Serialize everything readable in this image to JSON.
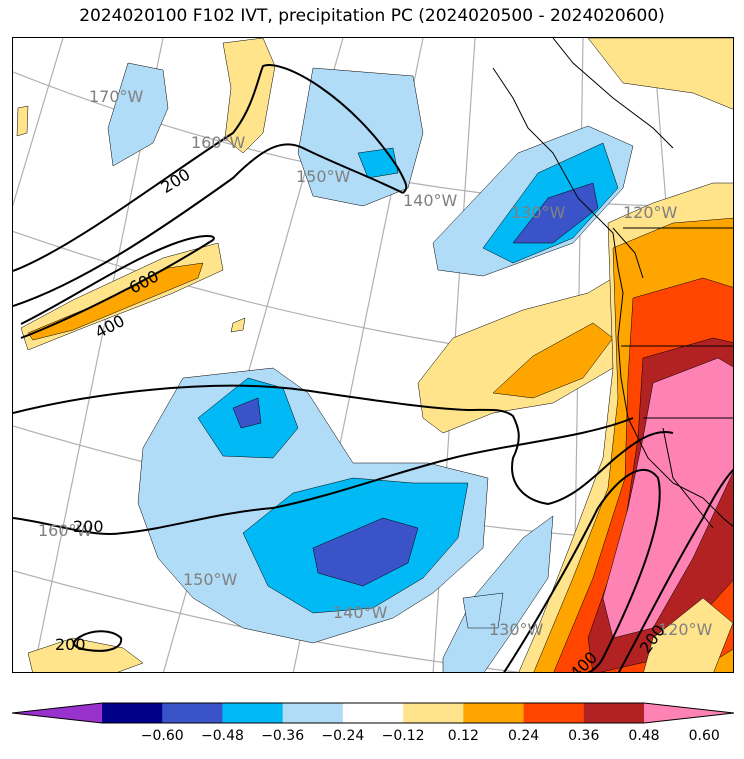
{
  "title": "2024020100 F102 IVT, precipitation PC (2024020500 - 2024020600)",
  "colors": {
    "purple": "#9932cc",
    "navy": "#00008b",
    "royal": "#3a53c8",
    "cyan": "#00b9f5",
    "lightblue": "#b0dcf8",
    "white": "#ffffff",
    "lightyellow": "#ffe48c",
    "orange": "#ffa500",
    "redorange": "#ff4500",
    "darkred": "#b22222",
    "pink": "#ff82b4",
    "gridline": "#b0b0b0",
    "contour": "#000000"
  },
  "longitude_labels": [
    "170°W",
    "160°W",
    "150°W",
    "140°W",
    "130°W",
    "120°W",
    "160°W",
    "150°W",
    "140°W",
    "130°W",
    "120°W"
  ],
  "contour_labels": [
    "200",
    "600",
    "400",
    "200",
    "200",
    "400",
    "200"
  ],
  "colorbar": {
    "ticks": [
      "−0.60",
      "−0.48",
      "−0.36",
      "−0.24",
      "−0.12",
      "0.12",
      "0.24",
      "0.36",
      "0.48",
      "0.60"
    ],
    "segments": [
      "purple",
      "navy",
      "royal",
      "cyan",
      "lightblue",
      "white",
      "lightyellow",
      "orange",
      "redorange",
      "darkred",
      "pink"
    ]
  }
}
